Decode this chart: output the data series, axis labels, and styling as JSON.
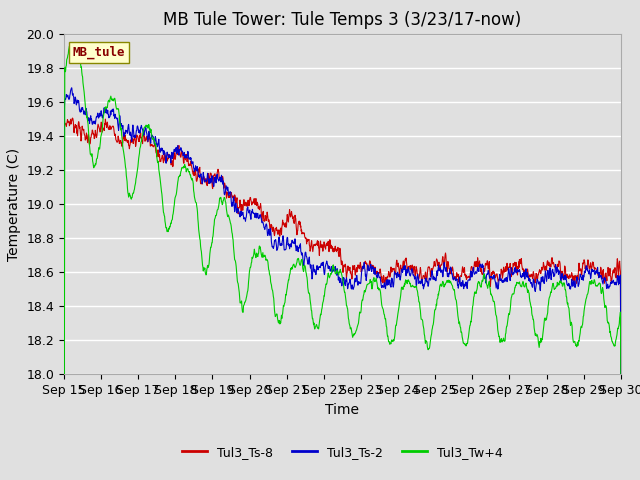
{
  "title": "MB Tule Tower: Tule Temps 3 (3/23/17-now)",
  "xlabel": "Time",
  "ylabel": "Temperature (C)",
  "ylim": [
    18.0,
    20.0
  ],
  "xlim": [
    0,
    15
  ],
  "yticks": [
    18.0,
    18.2,
    18.4,
    18.6,
    18.8,
    19.0,
    19.2,
    19.4,
    19.6,
    19.8,
    20.0
  ],
  "xtick_labels": [
    "Sep 15",
    "Sep 16",
    "Sep 17",
    "Sep 18",
    "Sep 19",
    "Sep 20",
    "Sep 21",
    "Sep 22",
    "Sep 23",
    "Sep 24",
    "Sep 25",
    "Sep 26",
    "Sep 27",
    "Sep 28",
    "Sep 29",
    "Sep 30"
  ],
  "legend_label_box": "MB_tule",
  "legend_entries": [
    "Tul3_Ts-8",
    "Tul3_Ts-2",
    "Tul3_Tw+4"
  ],
  "line_colors": [
    "#cc0000",
    "#0000cc",
    "#00cc00"
  ],
  "background_color": "#e0e0e0",
  "plot_bg_color": "#e0e0e0",
  "grid_color": "#ffffff",
  "title_fontsize": 12,
  "axis_fontsize": 10,
  "tick_fontsize": 9,
  "legend_box_color": "#ffffcc",
  "legend_box_edge": "#888800"
}
